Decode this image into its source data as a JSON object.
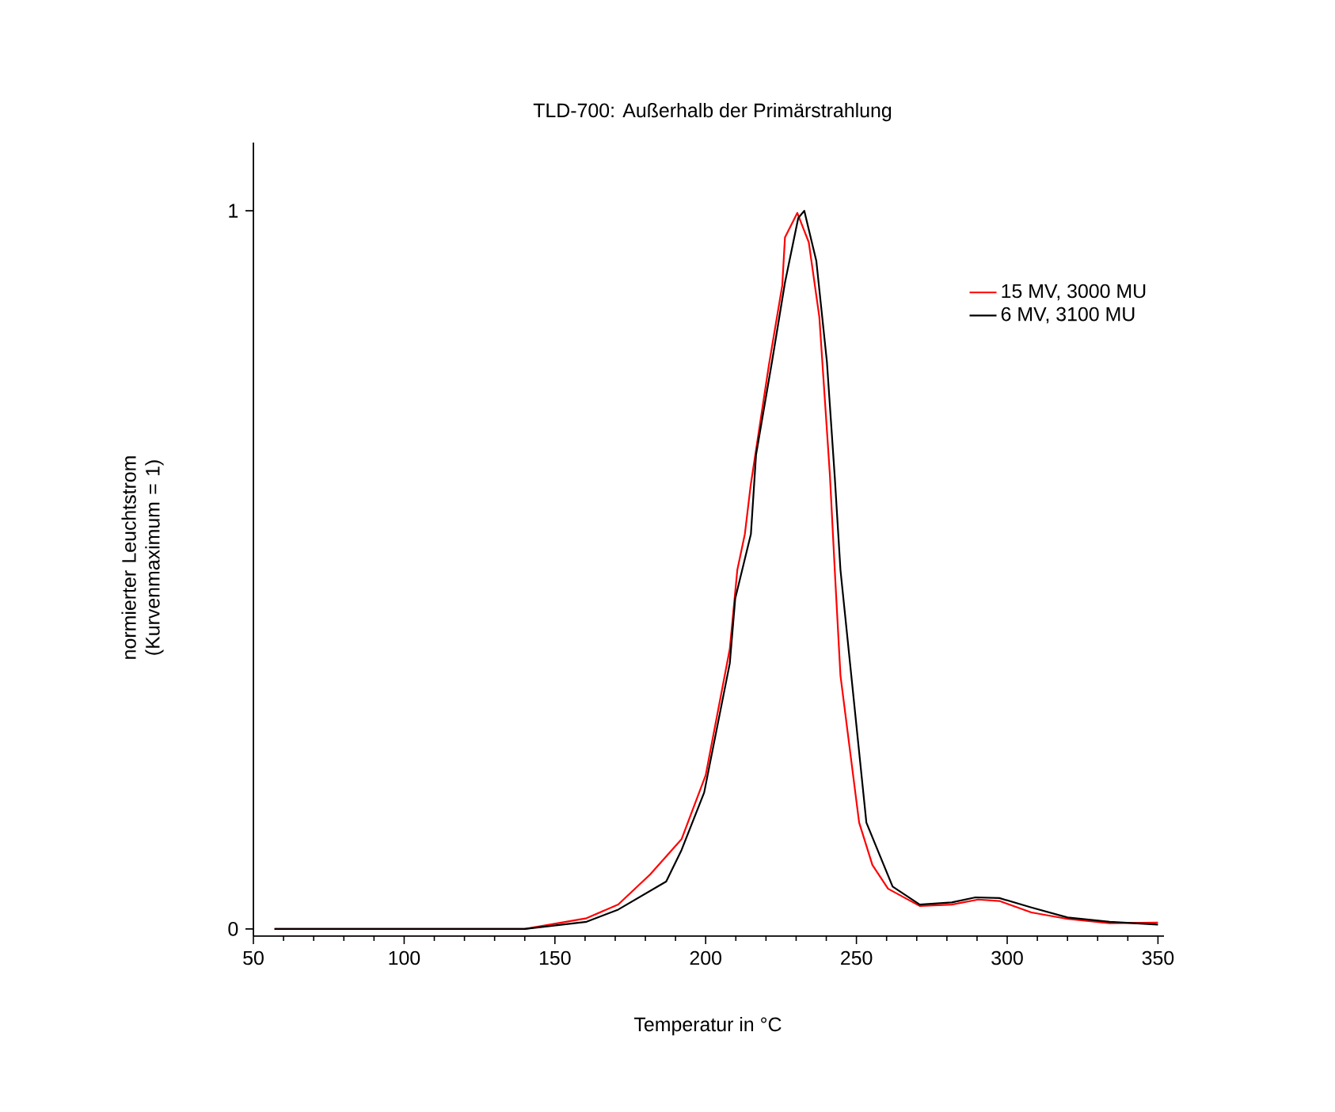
{
  "chart_data": {
    "type": "line",
    "title": "TLD-700: Außerhalb der Primärstrahlung",
    "xlabel": "Temperatur in °C",
    "ylabel": "normierter Leuchtstrom (Kurvenmaximum = 1)",
    "xlim": [
      50,
      352
    ],
    "ylim": [
      -0.01,
      1.095
    ],
    "xticks": [
      50,
      100,
      150,
      200,
      250,
      300,
      350
    ],
    "yticks": [
      0,
      1
    ],
    "legend": "top right",
    "grid": false,
    "marker": "none",
    "line_style": "solid",
    "series": [
      {
        "name": "15 MV, 3000 MU",
        "color": "#ff0000",
        "x": [
          57,
          140,
          160.5,
          171,
          181.6,
          192,
          200,
          208,
          210.5,
          213,
          214.9,
          221,
          225.4,
          226.3,
          230.4,
          234.2,
          237.7,
          241.2,
          243,
          244.7,
          250.9,
          255.3,
          260.5,
          271,
          281.6,
          290.4,
          297.4,
          308,
          320,
          334,
          350
        ],
        "values": [
          0,
          0,
          0.015,
          0.034,
          0.076,
          0.125,
          0.214,
          0.39,
          0.5,
          0.55,
          0.617,
          0.786,
          0.896,
          0.963,
          0.997,
          0.956,
          0.852,
          0.632,
          0.485,
          0.353,
          0.148,
          0.089,
          0.056,
          0.032,
          0.034,
          0.041,
          0.039,
          0.023,
          0.014,
          0.008,
          0.009
        ]
      },
      {
        "name": "6 MV, 3100 MU",
        "color": "#000000",
        "x": [
          57,
          140,
          160.5,
          171,
          186.9,
          192,
          199.5,
          208,
          209.8,
          215,
          216.7,
          222,
          226.3,
          230.7,
          232.7,
          236.7,
          240.2,
          242.8,
          244.7,
          253.3,
          257.6,
          262,
          271,
          281.6,
          289.5,
          297.4,
          308,
          320,
          334,
          350
        ],
        "values": [
          0,
          0,
          0.01,
          0.027,
          0.066,
          0.11,
          0.19,
          0.37,
          0.46,
          0.55,
          0.66,
          0.79,
          0.9,
          0.99,
          1.0,
          0.93,
          0.79,
          0.63,
          0.5,
          0.148,
          0.104,
          0.059,
          0.034,
          0.037,
          0.044,
          0.043,
          0.03,
          0.016,
          0.01,
          0.006
        ]
      }
    ]
  }
}
